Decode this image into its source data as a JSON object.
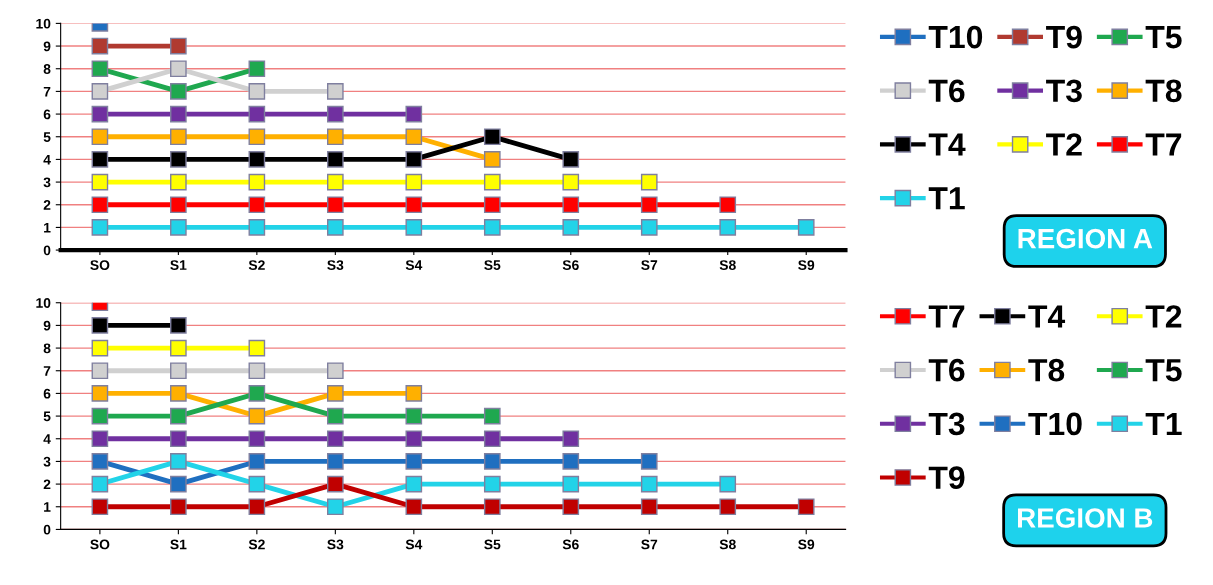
{
  "chart_data": [
    {
      "type": "line",
      "categories": [
        "SO",
        "S1",
        "S2",
        "S3",
        "S4",
        "S5",
        "S6",
        "S7",
        "S8",
        "S9"
      ],
      "ylim": [
        0,
        10
      ],
      "yticks": [
        0,
        1,
        2,
        3,
        4,
        5,
        6,
        7,
        8,
        9,
        10
      ],
      "grid": "y",
      "legend": "right",
      "marker": "square",
      "line_style": "solid",
      "annotations": [
        "REGION A"
      ],
      "series": [
        {
          "name": "T10",
          "color": "#1f6fc0",
          "values": [
            10,
            null,
            null,
            null,
            null,
            null,
            null,
            null,
            null,
            null
          ]
        },
        {
          "name": "T9",
          "color": "#b03a30",
          "values": [
            9,
            9,
            null,
            null,
            null,
            null,
            null,
            null,
            null,
            null
          ]
        },
        {
          "name": "T5",
          "color": "#1fa84f",
          "values": [
            8,
            7,
            8,
            null,
            null,
            null,
            null,
            null,
            null,
            null
          ]
        },
        {
          "name": "T6",
          "color": "#d0d0d0",
          "values": [
            7,
            8,
            7,
            7,
            null,
            null,
            null,
            null,
            null,
            null
          ]
        },
        {
          "name": "T3",
          "color": "#7030a0",
          "values": [
            6,
            6,
            6,
            6,
            6,
            null,
            null,
            null,
            null,
            null
          ]
        },
        {
          "name": "T8",
          "color": "#ffb000",
          "values": [
            5,
            5,
            5,
            5,
            5,
            4,
            null,
            null,
            null,
            null
          ]
        },
        {
          "name": "T4",
          "color": "#000000",
          "values": [
            4,
            4,
            4,
            4,
            4,
            5,
            4,
            null,
            null,
            null
          ]
        },
        {
          "name": "T2",
          "color": "#ffff00",
          "values": [
            3,
            3,
            3,
            3,
            3,
            3,
            3,
            3,
            null,
            null
          ]
        },
        {
          "name": "T7",
          "color": "#ff0000",
          "values": [
            2,
            2,
            2,
            2,
            2,
            2,
            2,
            2,
            2,
            null
          ]
        },
        {
          "name": "T1",
          "color": "#22d3e8",
          "values": [
            1,
            1,
            1,
            1,
            1,
            1,
            1,
            1,
            1,
            1
          ]
        }
      ]
    },
    {
      "type": "line",
      "categories": [
        "SO",
        "S1",
        "S2",
        "S3",
        "S4",
        "S5",
        "S6",
        "S7",
        "S8",
        "S9"
      ],
      "ylim": [
        0,
        10
      ],
      "yticks": [
        0,
        1,
        2,
        3,
        4,
        5,
        6,
        7,
        8,
        9,
        10
      ],
      "grid": "y",
      "legend": "right",
      "marker": "square",
      "line_style": "solid",
      "annotations": [
        "REGION B"
      ],
      "series": [
        {
          "name": "T7",
          "color": "#ff0000",
          "values": [
            10,
            null,
            null,
            null,
            null,
            null,
            null,
            null,
            null,
            null
          ]
        },
        {
          "name": "T4",
          "color": "#000000",
          "values": [
            9,
            9,
            null,
            null,
            null,
            null,
            null,
            null,
            null,
            null
          ]
        },
        {
          "name": "T2",
          "color": "#ffff00",
          "values": [
            8,
            8,
            8,
            null,
            null,
            null,
            null,
            null,
            null,
            null
          ]
        },
        {
          "name": "T6",
          "color": "#d0d0d0",
          "values": [
            7,
            7,
            7,
            7,
            null,
            null,
            null,
            null,
            null,
            null
          ]
        },
        {
          "name": "T8",
          "color": "#ffb000",
          "values": [
            6,
            6,
            5,
            6,
            6,
            null,
            null,
            null,
            null,
            null
          ]
        },
        {
          "name": "T5",
          "color": "#1fa84f",
          "values": [
            5,
            5,
            6,
            5,
            5,
            5,
            null,
            null,
            null,
            null
          ]
        },
        {
          "name": "T3",
          "color": "#7030a0",
          "values": [
            4,
            4,
            4,
            4,
            4,
            4,
            4,
            null,
            null,
            null
          ]
        },
        {
          "name": "T10",
          "color": "#1f6fc0",
          "values": [
            3,
            2,
            3,
            3,
            3,
            3,
            3,
            3,
            null,
            null
          ]
        },
        {
          "name": "T1",
          "color": "#22d3e8",
          "values": [
            2,
            3,
            2,
            1,
            2,
            2,
            2,
            2,
            2,
            null
          ]
        },
        {
          "name": "T9",
          "color": "#c00000",
          "values": [
            1,
            1,
            1,
            2,
            1,
            1,
            1,
            1,
            1,
            1
          ]
        }
      ]
    }
  ]
}
